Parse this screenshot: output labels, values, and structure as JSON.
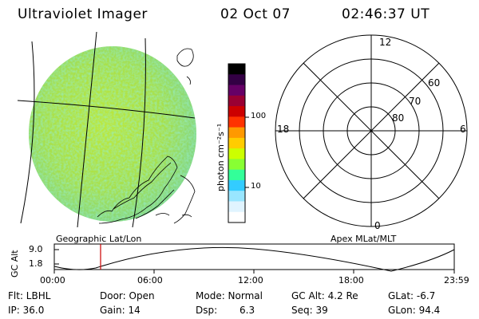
{
  "header": {
    "title": "Ultraviolet Imager",
    "date": "02 Oct 07",
    "time": "02:46:37 UT"
  },
  "colorbar": {
    "unit_label": "photon cm⁻²s⁻¹",
    "ticks": [
      "100",
      "10"
    ],
    "colors": [
      "#000000",
      "#330044",
      "#660066",
      "#990033",
      "#cc0000",
      "#ff3300",
      "#ff9900",
      "#ffcc00",
      "#ccff00",
      "#88ff33",
      "#33ff99",
      "#33ccff",
      "#99e6ff",
      "#e0f4ff",
      "#ffffff"
    ]
  },
  "geo_panel": {
    "caption": "Geographic Lat/Lon"
  },
  "polar_panel": {
    "caption": "Apex MLat/MLT",
    "mlt_labels": [
      "12",
      "6",
      "0",
      "18"
    ],
    "mlat_labels": [
      "60",
      "70",
      "80"
    ]
  },
  "altitude_plot": {
    "ylabel": "GC Alt",
    "yticks": [
      "9.0",
      "1.8"
    ],
    "xticks": [
      "00:00",
      "06:00",
      "12:00",
      "18:00",
      "23:59"
    ],
    "current_time_hours": 2.78
  },
  "info": {
    "flt": "Flt: LBHL",
    "ip": "IP: 36.0",
    "door": "Door: Open",
    "gain": "Gain: 14",
    "mode": "Mode: Normal",
    "dsp_label": "Dsp:",
    "dsp_value": "6.3",
    "gc_alt": "GC Alt: 4.2 Re",
    "seq": "Seq: 39",
    "glat": "GLat:  -6.7",
    "glon": "GLon:  94.4"
  }
}
